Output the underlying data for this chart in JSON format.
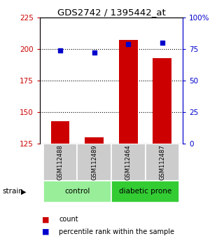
{
  "title": "GDS2742 / 1395442_at",
  "samples": [
    "GSM112488",
    "GSM112489",
    "GSM112464",
    "GSM112487"
  ],
  "count_values": [
    143,
    130,
    207,
    193
  ],
  "percentile_values": [
    74,
    72,
    79,
    80
  ],
  "groups": [
    {
      "label": "control",
      "indices": [
        0,
        1
      ],
      "color": "#99ee99"
    },
    {
      "label": "diabetic prone",
      "indices": [
        2,
        3
      ],
      "color": "#33cc33"
    }
  ],
  "left_ylim": [
    125,
    225
  ],
  "left_yticks": [
    125,
    150,
    175,
    200,
    225
  ],
  "right_ylim": [
    0,
    100
  ],
  "right_yticks": [
    0,
    25,
    50,
    75,
    100
  ],
  "right_yticklabels": [
    "0",
    "25",
    "50",
    "75",
    "100%"
  ],
  "bar_color": "#cc0000",
  "dot_color": "#0000cc",
  "bar_width": 0.55,
  "background_color": "#ffffff",
  "plot_bg_color": "#ffffff",
  "title_color": "#000000",
  "left_axis_color": "#cc0000",
  "right_axis_color": "#0000cc",
  "sample_box_color": "#cccccc",
  "strain_label": "strain",
  "legend_count_label": "count",
  "legend_percentile_label": "percentile rank within the sample",
  "grid_lines": [
    150,
    175,
    200
  ]
}
